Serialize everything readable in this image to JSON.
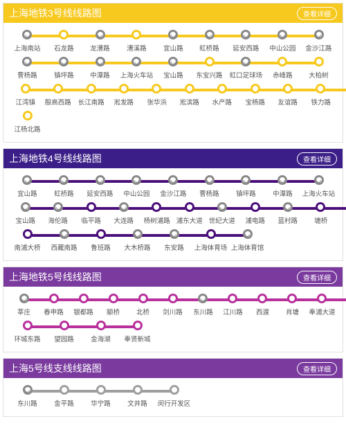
{
  "detail_label": "查看详细",
  "station_cell_width": 53,
  "lines": [
    {
      "id": "line3",
      "title": "上海地铁3号线线路图",
      "header_bg": "#f7c91e",
      "track_color": "#f7c91e",
      "dot_border": "#f7c91e",
      "rows": [
        [
          {
            "name": "上海南站",
            "interchange": true
          },
          {
            "name": "石龙路",
            "interchange": false
          },
          {
            "name": "龙漕路",
            "interchange": true
          },
          {
            "name": "漕溪路",
            "interchange": false
          },
          {
            "name": "宜山路",
            "interchange": true
          },
          {
            "name": "虹桥路",
            "interchange": true
          },
          {
            "name": "延安西路",
            "interchange": true
          },
          {
            "name": "中山公园",
            "interchange": true
          },
          {
            "name": "金沙江路",
            "interchange": true
          }
        ],
        [
          {
            "name": "曹杨路",
            "interchange": true
          },
          {
            "name": "镇坪路",
            "interchange": true
          },
          {
            "name": "中潭路",
            "interchange": true
          },
          {
            "name": "上海火车站",
            "interchange": true
          },
          {
            "name": "宝山路",
            "interchange": true
          },
          {
            "name": "东宝兴路",
            "interchange": false
          },
          {
            "name": "虹口足球场",
            "interchange": true
          },
          {
            "name": "赤峰路",
            "interchange": false
          },
          {
            "name": "大柏树",
            "interchange": false
          }
        ],
        [
          {
            "name": "江湾镇",
            "interchange": false
          },
          {
            "name": "殷高西路",
            "interchange": false
          },
          {
            "name": "长江南路",
            "interchange": false
          },
          {
            "name": "淞发路",
            "interchange": false
          },
          {
            "name": "张华浜",
            "interchange": false
          },
          {
            "name": "淞滨路",
            "interchange": false
          },
          {
            "name": "水产路",
            "interchange": false
          },
          {
            "name": "宝杨路",
            "interchange": false
          },
          {
            "name": "友谊路",
            "interchange": false
          },
          {
            "name": "铁力路",
            "interchange": false
          }
        ],
        [
          {
            "name": "江杨北路",
            "interchange": false
          }
        ]
      ]
    },
    {
      "id": "line4",
      "title": "上海地铁4号线线路图",
      "header_bg": "#3b1e87",
      "track_color": "#4b0f7a",
      "dot_border": "#4b0f7a",
      "rows": [
        [
          {
            "name": "宜山路",
            "interchange": true
          },
          {
            "name": "虹桥路",
            "interchange": true
          },
          {
            "name": "延安西路",
            "interchange": true
          },
          {
            "name": "中山公园",
            "interchange": true
          },
          {
            "name": "金沙江路",
            "interchange": true
          },
          {
            "name": "曹杨路",
            "interchange": true
          },
          {
            "name": "镇坪路",
            "interchange": true
          },
          {
            "name": "中潭路",
            "interchange": true
          },
          {
            "name": "上海火车站",
            "interchange": true
          }
        ],
        [
          {
            "name": "宝山路",
            "interchange": true
          },
          {
            "name": "海伦路",
            "interchange": true
          },
          {
            "name": "临平路",
            "interchange": false
          },
          {
            "name": "大连路",
            "interchange": true
          },
          {
            "name": "杨树浦路",
            "interchange": false
          },
          {
            "name": "浦东大道",
            "interchange": false
          },
          {
            "name": "世纪大道",
            "interchange": true
          },
          {
            "name": "浦电路",
            "interchange": false
          },
          {
            "name": "蓝村路",
            "interchange": true
          },
          {
            "name": "塘桥",
            "interchange": false
          }
        ],
        [
          {
            "name": "南浦大桥",
            "interchange": false
          },
          {
            "name": "西藏南路",
            "interchange": true
          },
          {
            "name": "鲁班路",
            "interchange": false
          },
          {
            "name": "大木桥路",
            "interchange": true
          },
          {
            "name": "东安路",
            "interchange": true
          },
          {
            "name": "上海体育场",
            "interchange": false
          },
          {
            "name": "上海体育馆",
            "interchange": true
          }
        ]
      ]
    },
    {
      "id": "line5",
      "title": "上海地铁5号线线路图",
      "header_bg": "#7a3a9e",
      "track_color": "#b8309c",
      "dot_border": "#b8309c",
      "rows": [
        [
          {
            "name": "莘庄",
            "interchange": true
          },
          {
            "name": "春申路",
            "interchange": false
          },
          {
            "name": "银都路",
            "interchange": false
          },
          {
            "name": "颛桥",
            "interchange": false
          },
          {
            "name": "北桥",
            "interchange": false
          },
          {
            "name": "剑川路",
            "interchange": false
          },
          {
            "name": "东川路",
            "interchange": true
          },
          {
            "name": "江川路",
            "interchange": false
          },
          {
            "name": "西渡",
            "interchange": false
          },
          {
            "name": "肖塘",
            "interchange": false
          },
          {
            "name": "奉浦大道",
            "interchange": false
          }
        ],
        [
          {
            "name": "环城东路",
            "interchange": false
          },
          {
            "name": "望园路",
            "interchange": false
          },
          {
            "name": "金海湖",
            "interchange": false
          },
          {
            "name": "奉贤新城",
            "interchange": false
          }
        ]
      ]
    },
    {
      "id": "line5branch",
      "title": "上海5号线支线线路图",
      "header_bg": "#7a3a9e",
      "track_color": "#9e9e9e",
      "dot_border": "#9e9e9e",
      "rows": [
        [
          {
            "name": "东川路",
            "interchange": true
          },
          {
            "name": "金平路",
            "interchange": false
          },
          {
            "name": "华宁路",
            "interchange": false
          },
          {
            "name": "文井路",
            "interchange": false
          },
          {
            "name": "闵行开发区",
            "interchange": false
          }
        ]
      ]
    }
  ]
}
